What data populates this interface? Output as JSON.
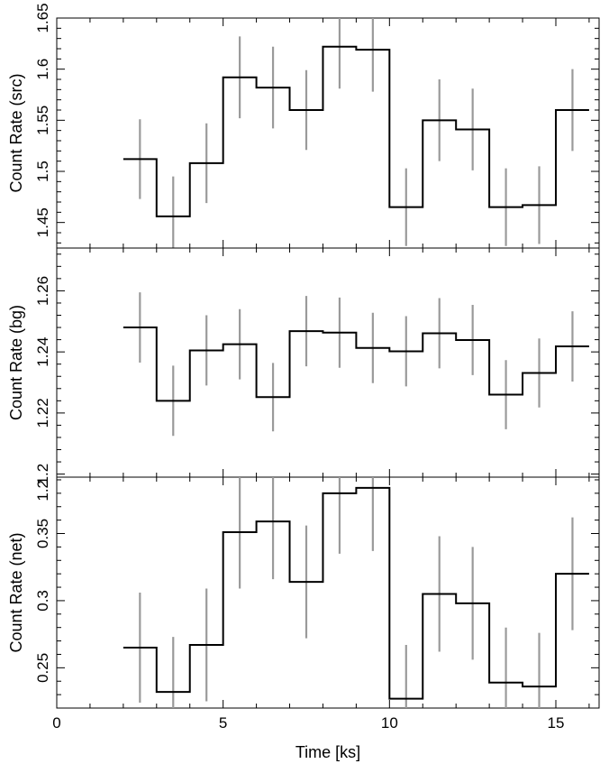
{
  "chart_data": [
    {
      "type": "line",
      "panel": "top",
      "step": true,
      "ylabel": "Count Rate (src)",
      "xlabel": "",
      "xlim": [
        0,
        16.3
      ],
      "ylim": [
        1.425,
        1.65
      ],
      "yticks": [
        1.45,
        1.5,
        1.55,
        1.6,
        1.65
      ],
      "yticklabels": [
        "1.45",
        "1.5",
        "1.55",
        "1.6",
        "1.65"
      ],
      "x": [
        2.5,
        3.5,
        4.5,
        5.5,
        6.5,
        7.5,
        8.5,
        9.5,
        10.5,
        11.5,
        12.5,
        13.5,
        14.5,
        15.5
      ],
      "bin_width": 1,
      "values": [
        1.512,
        1.456,
        1.508,
        1.592,
        1.582,
        1.56,
        1.622,
        1.619,
        1.465,
        1.55,
        1.541,
        1.465,
        1.467,
        1.56
      ],
      "errors": [
        0.039,
        0.039,
        0.039,
        0.04,
        0.04,
        0.039,
        0.041,
        0.041,
        0.038,
        0.04,
        0.04,
        0.038,
        0.038,
        0.04
      ]
    },
    {
      "type": "line",
      "panel": "middle",
      "step": true,
      "ylabel": "Count Rate (bg)",
      "xlabel": "",
      "xlim": [
        0,
        16.3
      ],
      "ylim": [
        1.199,
        1.274
      ],
      "yticks": [
        1.2,
        1.22,
        1.24,
        1.26
      ],
      "yticklabels": [
        "1.2",
        "1.22",
        "1.24",
        "1.26"
      ],
      "x": [
        2.5,
        3.5,
        4.5,
        5.5,
        6.5,
        7.5,
        8.5,
        9.5,
        10.5,
        11.5,
        12.5,
        13.5,
        14.5,
        15.5
      ],
      "bin_width": 1,
      "values": [
        1.248,
        1.224,
        1.2405,
        1.2425,
        1.2252,
        1.2468,
        1.2463,
        1.2413,
        1.2402,
        1.2461,
        1.2439,
        1.226,
        1.2331,
        1.2418
      ],
      "errors": [
        0.0115,
        0.0115,
        0.0115,
        0.0115,
        0.0112,
        0.0115,
        0.0115,
        0.0115,
        0.0115,
        0.0115,
        0.0115,
        0.0113,
        0.0113,
        0.0115
      ]
    },
    {
      "type": "line",
      "panel": "bottom",
      "step": true,
      "ylabel": "Count Rate (net)",
      "xlabel": "Time [ks]",
      "xlim": [
        0,
        16.3
      ],
      "ylim": [
        0.22,
        0.392
      ],
      "yticks": [
        0.25,
        0.3,
        0.35
      ],
      "yticklabels": [
        "0.25",
        "0.3",
        "0.35"
      ],
      "top_edge_label": "1.2",
      "xticks": [
        0,
        5,
        10,
        15
      ],
      "xticklabels": [
        "0",
        "5",
        "10",
        "15"
      ],
      "x": [
        2.5,
        3.5,
        4.5,
        5.5,
        6.5,
        7.5,
        8.5,
        9.5,
        10.5,
        11.5,
        12.5,
        13.5,
        14.5,
        15.5
      ],
      "bin_width": 1,
      "values": [
        0.265,
        0.232,
        0.267,
        0.351,
        0.359,
        0.314,
        0.38,
        0.384,
        0.227,
        0.305,
        0.298,
        0.239,
        0.236,
        0.32
      ],
      "errors": [
        0.041,
        0.041,
        0.042,
        0.042,
        0.043,
        0.042,
        0.045,
        0.047,
        0.04,
        0.043,
        0.042,
        0.041,
        0.04,
        0.042
      ]
    }
  ]
}
